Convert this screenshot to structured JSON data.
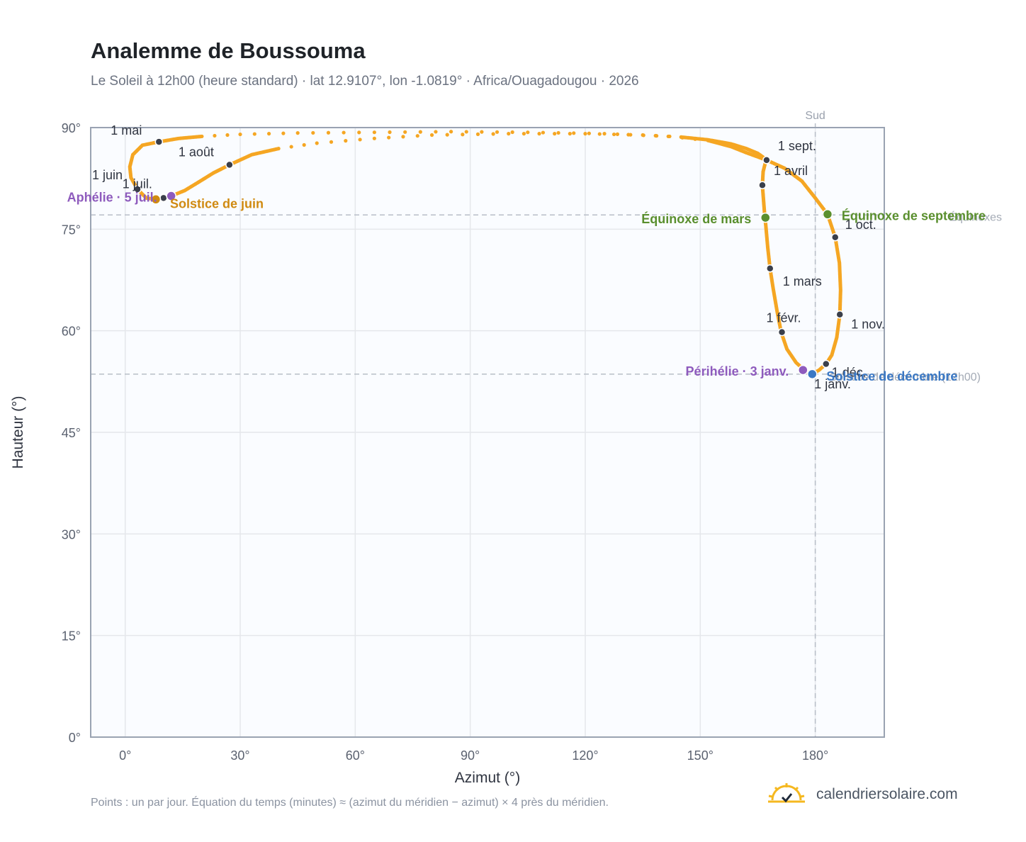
{
  "header": {
    "title": "Analemme de Boussouma",
    "subtitle": "Le Soleil à 12h00 (heure standard) · lat 12.9107°, lon -1.0819° · Africa/Ouagadougou · 2026"
  },
  "footer": {
    "note": "Points : un par jour. Équation du temps (minutes) ≈ (azimut du méridien − azimut) × 4 près du méridien.",
    "brand": "calendriersolaire.com",
    "brand_icon": "sun-check-icon"
  },
  "colors": {
    "curve": "#f5a623",
    "month_marker": "#3a3f4b",
    "equinox": "#5a8f2e",
    "june_solstice": "#d08a10",
    "december_solstice": "#3b78c4",
    "perihelion_aphelion": "#8e5bbd",
    "grid": "#e5e7eb",
    "plot_bg": "#fafcff",
    "frame": "#9aa3b2",
    "reference_line": "#b8bec8"
  },
  "chart_data": {
    "type": "scatter",
    "title": "Analemme de Boussouma",
    "xlabel": "Azimut (°)",
    "ylabel": "Hauteur (°)",
    "xlim": [
      -9,
      198
    ],
    "ylim": [
      0,
      90
    ],
    "x_ticks": [
      0,
      30,
      60,
      90,
      120,
      150,
      180
    ],
    "x_tick_labels": [
      "0°",
      "30°",
      "60°",
      "90°",
      "120°",
      "150°",
      "180°"
    ],
    "y_ticks": [
      0,
      15,
      30,
      45,
      60,
      75,
      90
    ],
    "y_tick_labels": [
      "0°",
      "15°",
      "30°",
      "45°",
      "60°",
      "75°",
      "90°"
    ],
    "grid": true,
    "meridian": {
      "azimuth": 180,
      "label": "Sud"
    },
    "reference_altitudes": [
      77.1,
      53.6
    ],
    "path_points": [
      [
        179.2,
        53.6
      ],
      [
        177.5,
        54.0
      ],
      [
        175.0,
        55.3
      ],
      [
        172.6,
        57.3
      ],
      [
        171.1,
        59.8
      ],
      [
        170.0,
        63.0
      ],
      [
        169.0,
        66.3
      ],
      [
        168.2,
        69.2
      ],
      [
        167.6,
        72.3
      ],
      [
        167.1,
        75.5
      ],
      [
        166.8,
        77.1
      ],
      [
        166.5,
        79.3
      ],
      [
        166.2,
        81.5
      ],
      [
        166.4,
        83.5
      ],
      [
        167.2,
        85.3
      ],
      [
        165.0,
        86.2
      ],
      [
        162.0,
        86.9
      ],
      [
        158.0,
        87.6
      ],
      [
        152.0,
        88.2
      ],
      [
        145.0,
        88.6
      ],
      [
        135.0,
        88.9
      ],
      [
        120.0,
        89.1
      ],
      [
        100.0,
        89.1
      ],
      [
        80.0,
        88.9
      ],
      [
        65.0,
        88.4
      ],
      [
        50.0,
        87.7
      ],
      [
        40.0,
        86.9
      ],
      [
        33.0,
        86.0
      ],
      [
        27.2,
        84.5
      ],
      [
        23.0,
        83.3
      ],
      [
        19.0,
        81.9
      ],
      [
        15.5,
        80.7
      ],
      [
        12.0,
        79.9
      ],
      [
        10.0,
        79.6
      ],
      [
        8.0,
        79.4
      ],
      [
        5.5,
        79.6
      ],
      [
        3.2,
        80.9
      ],
      [
        1.5,
        82.6
      ],
      [
        1.2,
        84.2
      ],
      [
        2.0,
        86.0
      ],
      [
        4.5,
        87.4
      ],
      [
        8.8,
        87.9
      ],
      [
        14.0,
        88.4
      ],
      [
        20.0,
        88.7
      ],
      [
        30.0,
        89.0
      ],
      [
        45.0,
        89.2
      ],
      [
        65.0,
        89.3
      ],
      [
        85.0,
        89.4
      ],
      [
        105.0,
        89.3
      ],
      [
        125.0,
        89.1
      ],
      [
        142.0,
        88.7
      ],
      [
        152.0,
        88.1
      ],
      [
        158.0,
        87.2
      ],
      [
        162.0,
        86.3
      ],
      [
        167.3,
        85.2
      ],
      [
        172.0,
        84.0
      ],
      [
        176.5,
        82.1
      ],
      [
        180.0,
        79.6
      ],
      [
        183.2,
        77.2
      ],
      [
        185.2,
        73.8
      ],
      [
        186.3,
        70.0
      ],
      [
        186.6,
        66.0
      ],
      [
        186.4,
        62.4
      ],
      [
        185.6,
        59.0
      ],
      [
        184.3,
        56.4
      ],
      [
        182.8,
        55.1
      ],
      [
        181.0,
        54.2
      ],
      [
        179.2,
        53.6
      ]
    ],
    "month_markers": [
      {
        "label": "1 janv.",
        "x": 179.0,
        "y": 53.6
      },
      {
        "label": "1 févr.",
        "x": 171.3,
        "y": 59.8
      },
      {
        "label": "1 mars",
        "x": 168.2,
        "y": 69.2
      },
      {
        "label": "1 avril",
        "x": 166.2,
        "y": 81.5
      },
      {
        "label": "1 mai",
        "x": 8.8,
        "y": 87.9
      },
      {
        "label": "1 juin",
        "x": 3.2,
        "y": 80.9
      },
      {
        "label": "1 juil.",
        "x": 10.0,
        "y": 79.6
      },
      {
        "label": "1 août",
        "x": 27.2,
        "y": 84.5
      },
      {
        "label": "1 sept.",
        "x": 167.3,
        "y": 85.2
      },
      {
        "label": "1 oct.",
        "x": 185.2,
        "y": 73.8
      },
      {
        "label": "1 nov.",
        "x": 186.4,
        "y": 62.4
      },
      {
        "label": "1 déc.",
        "x": 182.8,
        "y": 55.1
      }
    ],
    "special_points": [
      {
        "label": "Équinoxe de mars",
        "x": 167.0,
        "y": 76.7,
        "kind": "equinox"
      },
      {
        "label": "Équinoxe de septembre",
        "x": 183.2,
        "y": 77.2,
        "kind": "equinox"
      },
      {
        "label": "Solstice de juin",
        "x": 8.0,
        "y": 79.4,
        "kind": "june_solstice"
      },
      {
        "label": "Solstice de décembre",
        "x": 179.2,
        "y": 53.6,
        "kind": "december_solstice"
      },
      {
        "label": "Périhélie · 3 janv.",
        "x": 176.8,
        "y": 54.2,
        "kind": "apsis"
      },
      {
        "label": "Aphélie · 5 juil.",
        "x": 12.0,
        "y": 79.9,
        "kind": "apsis"
      }
    ],
    "reference_texts": [
      "Équinoxes",
      "Solstice de décembre (12h00)"
    ]
  }
}
